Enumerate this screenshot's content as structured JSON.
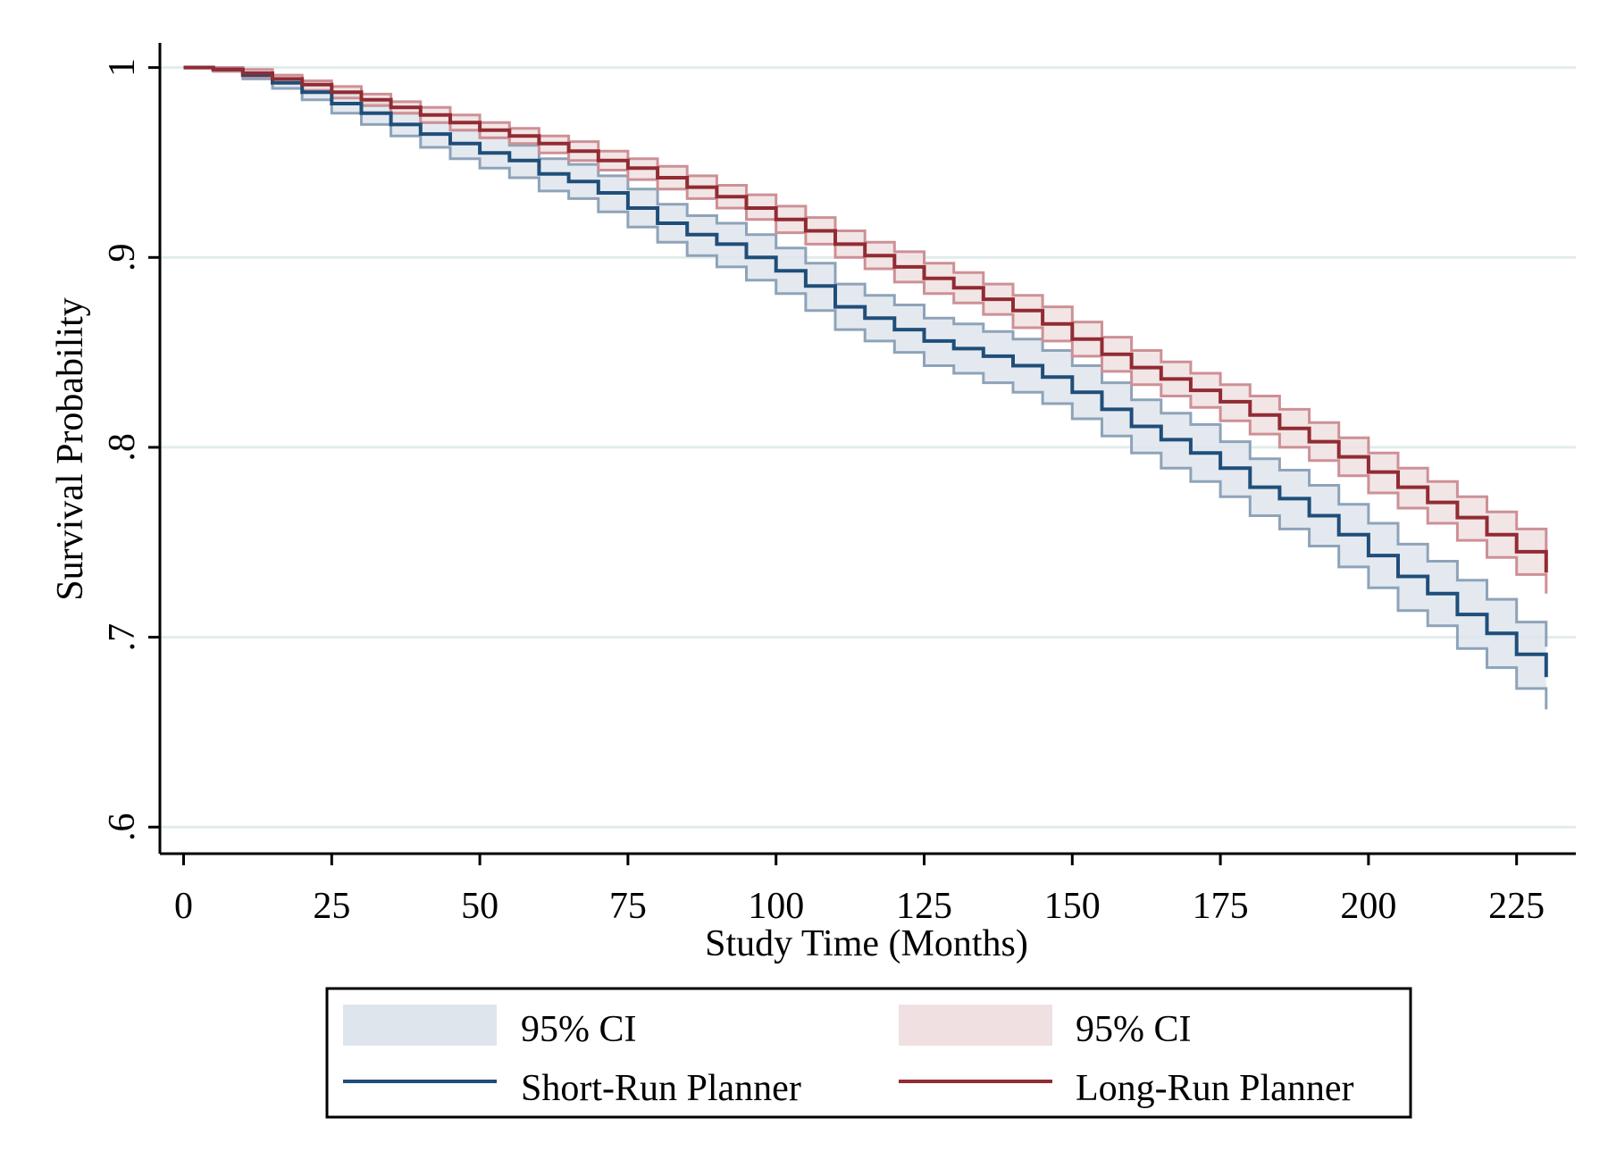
{
  "chart_data": {
    "type": "line",
    "subtype": "kaplan-meier step survival curve with confidence bands",
    "xlabel": "Study Time (Months)",
    "ylabel": "Survival Probability",
    "xlim": [
      -4,
      235
    ],
    "ylim": [
      0.586,
      1.013
    ],
    "x_ticks": [
      0,
      25,
      50,
      75,
      100,
      125,
      150,
      175,
      200,
      225
    ],
    "x_tick_labels": [
      "0",
      "25",
      "50",
      "75",
      "100",
      "125",
      "150",
      "175",
      "200",
      "225"
    ],
    "y_ticks": [
      0.6,
      0.7,
      0.8,
      0.9,
      1.0
    ],
    "y_tick_labels": [
      ".6",
      ".7",
      ".8",
      ".9",
      "1"
    ],
    "grid": "horizontal",
    "legend_position": "bottom",
    "x": [
      0,
      5,
      10,
      15,
      20,
      25,
      30,
      35,
      40,
      45,
      50,
      55,
      60,
      65,
      70,
      75,
      80,
      85,
      90,
      95,
      100,
      105,
      110,
      115,
      120,
      125,
      130,
      135,
      140,
      145,
      150,
      155,
      160,
      165,
      170,
      175,
      180,
      185,
      190,
      195,
      200,
      205,
      210,
      215,
      220,
      225,
      230
    ],
    "series": [
      {
        "name": "Short-Run Planner",
        "color": "#1f4e79",
        "band_color": "#dfe5ed",
        "band_edge_color": "#8ea3b9",
        "ci_label": "95% CI",
        "values": [
          1.0,
          0.999,
          0.996,
          0.992,
          0.987,
          0.981,
          0.976,
          0.97,
          0.965,
          0.96,
          0.955,
          0.951,
          0.944,
          0.94,
          0.934,
          0.926,
          0.918,
          0.912,
          0.907,
          0.9,
          0.893,
          0.885,
          0.874,
          0.868,
          0.862,
          0.856,
          0.852,
          0.848,
          0.843,
          0.837,
          0.829,
          0.82,
          0.811,
          0.804,
          0.797,
          0.789,
          0.779,
          0.773,
          0.764,
          0.754,
          0.743,
          0.732,
          0.723,
          0.712,
          0.702,
          0.691,
          0.679
        ],
        "lower": [
          1.0,
          0.998,
          0.994,
          0.989,
          0.983,
          0.976,
          0.97,
          0.964,
          0.958,
          0.952,
          0.947,
          0.942,
          0.935,
          0.931,
          0.924,
          0.916,
          0.908,
          0.901,
          0.895,
          0.888,
          0.881,
          0.872,
          0.862,
          0.856,
          0.85,
          0.843,
          0.839,
          0.834,
          0.829,
          0.823,
          0.815,
          0.806,
          0.797,
          0.789,
          0.782,
          0.774,
          0.764,
          0.757,
          0.748,
          0.737,
          0.726,
          0.714,
          0.706,
          0.694,
          0.684,
          0.673,
          0.662
        ],
        "upper": [
          1.0,
          1.0,
          0.998,
          0.995,
          0.991,
          0.986,
          0.981,
          0.976,
          0.971,
          0.967,
          0.963,
          0.959,
          0.952,
          0.949,
          0.943,
          0.936,
          0.928,
          0.922,
          0.918,
          0.912,
          0.905,
          0.897,
          0.886,
          0.88,
          0.875,
          0.868,
          0.865,
          0.861,
          0.857,
          0.851,
          0.843,
          0.834,
          0.825,
          0.818,
          0.812,
          0.803,
          0.794,
          0.788,
          0.78,
          0.77,
          0.76,
          0.749,
          0.74,
          0.73,
          0.72,
          0.708,
          0.695
        ]
      },
      {
        "name": "Long-Run Planner",
        "color": "#922b33",
        "band_color": "#f0e0e2",
        "band_edge_color": "#cd9096",
        "ci_label": "95% CI",
        "values": [
          1.0,
          0.999,
          0.997,
          0.994,
          0.991,
          0.987,
          0.983,
          0.979,
          0.975,
          0.971,
          0.967,
          0.964,
          0.96,
          0.956,
          0.951,
          0.947,
          0.942,
          0.937,
          0.932,
          0.926,
          0.92,
          0.914,
          0.907,
          0.901,
          0.895,
          0.889,
          0.884,
          0.878,
          0.872,
          0.865,
          0.857,
          0.849,
          0.842,
          0.836,
          0.83,
          0.824,
          0.817,
          0.81,
          0.803,
          0.795,
          0.787,
          0.779,
          0.771,
          0.763,
          0.754,
          0.745,
          0.734
        ],
        "lower": [
          1.0,
          0.998,
          0.995,
          0.992,
          0.988,
          0.984,
          0.98,
          0.976,
          0.971,
          0.967,
          0.963,
          0.96,
          0.955,
          0.951,
          0.946,
          0.941,
          0.936,
          0.931,
          0.926,
          0.92,
          0.913,
          0.907,
          0.9,
          0.894,
          0.887,
          0.881,
          0.876,
          0.87,
          0.863,
          0.856,
          0.848,
          0.84,
          0.833,
          0.827,
          0.821,
          0.814,
          0.807,
          0.8,
          0.793,
          0.785,
          0.776,
          0.768,
          0.76,
          0.751,
          0.742,
          0.733,
          0.723
        ],
        "upper": [
          1.0,
          1.0,
          0.999,
          0.996,
          0.993,
          0.99,
          0.986,
          0.982,
          0.979,
          0.975,
          0.971,
          0.968,
          0.964,
          0.961,
          0.956,
          0.952,
          0.948,
          0.943,
          0.938,
          0.933,
          0.927,
          0.921,
          0.914,
          0.908,
          0.903,
          0.897,
          0.892,
          0.886,
          0.88,
          0.874,
          0.866,
          0.858,
          0.851,
          0.845,
          0.839,
          0.833,
          0.827,
          0.82,
          0.813,
          0.805,
          0.797,
          0.789,
          0.782,
          0.774,
          0.766,
          0.757,
          0.745
        ]
      }
    ]
  }
}
